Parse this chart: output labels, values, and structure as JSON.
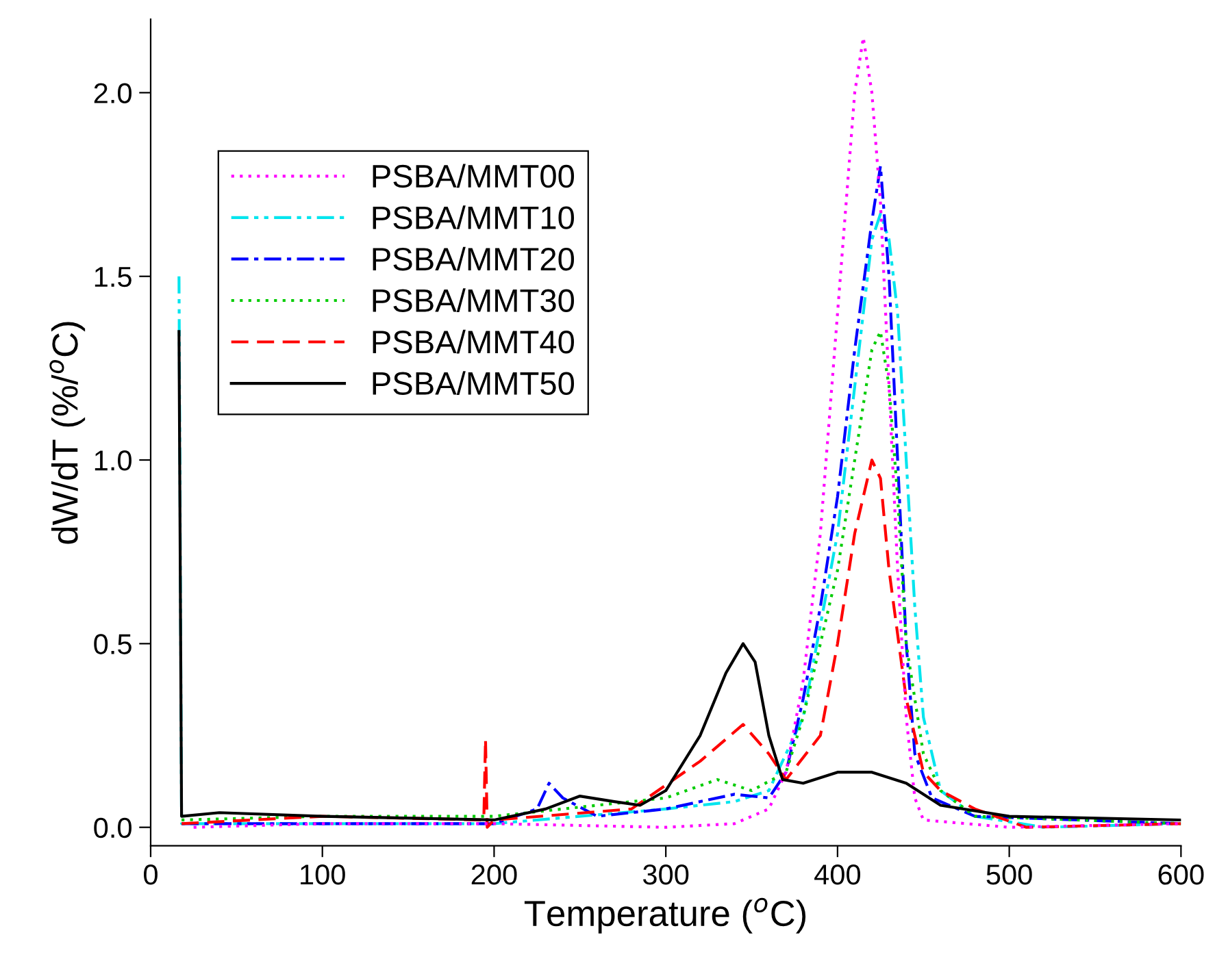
{
  "chart_data": {
    "type": "line",
    "xlabel": "Temperature ($^{o}$C)",
    "ylabel": "dW/dT (%/$^{o}$C)",
    "xlim": [
      0,
      600
    ],
    "ylim": [
      -0.05,
      2.2
    ],
    "xticks": [
      0,
      100,
      200,
      300,
      400,
      500,
      600
    ],
    "yticks": [
      {
        "value": 0,
        "label": "0.0"
      },
      {
        "value": 0.5,
        "label": "0.5"
      },
      {
        "value": 1.0,
        "label": "1.0"
      },
      {
        "value": 1.5,
        "label": "1.5"
      },
      {
        "value": 2.0,
        "label": "2.0"
      }
    ],
    "grid": false,
    "legend": "top left",
    "marker": "none",
    "series": [
      {
        "name": "PSBA/MMT00",
        "color": "#ff00ff",
        "line_style": "dotted",
        "x": [
          25,
          100,
          200,
          300,
          340,
          360,
          370,
          380,
          390,
          400,
          405,
          410,
          415,
          420,
          425,
          430,
          435,
          440,
          445,
          450,
          500,
          600
        ],
        "values": [
          0.0,
          0.01,
          0.01,
          0.0,
          0.01,
          0.05,
          0.15,
          0.4,
          0.8,
          1.4,
          1.7,
          2.0,
          2.15,
          2.0,
          1.7,
          1.2,
          0.7,
          0.3,
          0.08,
          0.02,
          0.0,
          0.01
        ]
      },
      {
        "name": "PSBA/MMT10",
        "color": "#00e5ee",
        "line_style": "dashdotdot",
        "x": [
          16.5,
          18,
          200,
          300,
          340,
          360,
          380,
          400,
          410,
          420,
          425,
          430,
          435,
          440,
          445,
          450,
          460,
          480,
          520,
          600
        ],
        "values": [
          1.5,
          0.01,
          0.01,
          0.05,
          0.07,
          0.1,
          0.3,
          0.8,
          1.2,
          1.6,
          1.67,
          1.6,
          1.4,
          1.0,
          0.6,
          0.3,
          0.1,
          0.03,
          0.0,
          0.01
        ]
      },
      {
        "name": "PSBA/MMT20",
        "color": "#0000ff",
        "line_style": "dashdot",
        "x": [
          18,
          200,
          225,
          232,
          240,
          260,
          300,
          340,
          360,
          370,
          380,
          390,
          400,
          410,
          420,
          425,
          430,
          435,
          440,
          445,
          455,
          480,
          600
        ],
        "values": [
          0.01,
          0.01,
          0.05,
          0.12,
          0.08,
          0.03,
          0.05,
          0.09,
          0.08,
          0.15,
          0.35,
          0.6,
          0.9,
          1.3,
          1.65,
          1.8,
          1.5,
          1.0,
          0.5,
          0.2,
          0.08,
          0.03,
          0.01
        ]
      },
      {
        "name": "PSBA/MMT30",
        "color": "#00cc00",
        "line_style": "dotted",
        "x": [
          18,
          100,
          200,
          300,
          330,
          350,
          370,
          380,
          400,
          410,
          420,
          425,
          430,
          435,
          440,
          450,
          460,
          480,
          600
        ],
        "values": [
          0.02,
          0.03,
          0.03,
          0.08,
          0.13,
          0.1,
          0.15,
          0.3,
          0.7,
          1.0,
          1.3,
          1.35,
          1.2,
          0.9,
          0.5,
          0.2,
          0.1,
          0.03,
          0.01
        ]
      },
      {
        "name": "PSBA/MMT40",
        "color": "#ff0000",
        "line_style": "dashed",
        "x": [
          18,
          100,
          194,
          195,
          196,
          200,
          280,
          320,
          345,
          360,
          370,
          390,
          400,
          410,
          420,
          425,
          430,
          440,
          450,
          460,
          480,
          510,
          600
        ],
        "values": [
          0.01,
          0.03,
          0.02,
          0.24,
          0.0,
          0.02,
          0.05,
          0.18,
          0.28,
          0.2,
          0.13,
          0.25,
          0.5,
          0.8,
          1.0,
          0.95,
          0.7,
          0.35,
          0.15,
          0.1,
          0.05,
          0.0,
          0.01
        ]
      },
      {
        "name": "PSBA/MMT50",
        "color": "#000000",
        "line_style": "solid",
        "x": [
          16.5,
          18,
          40,
          100,
          200,
          230,
          250,
          270,
          285,
          300,
          320,
          335,
          345,
          352,
          360,
          368,
          380,
          400,
          420,
          440,
          460,
          500,
          600
        ],
        "values": [
          1.35,
          0.03,
          0.04,
          0.03,
          0.02,
          0.05,
          0.085,
          0.07,
          0.06,
          0.1,
          0.25,
          0.42,
          0.5,
          0.45,
          0.25,
          0.13,
          0.12,
          0.15,
          0.15,
          0.12,
          0.06,
          0.03,
          0.02
        ]
      }
    ]
  }
}
